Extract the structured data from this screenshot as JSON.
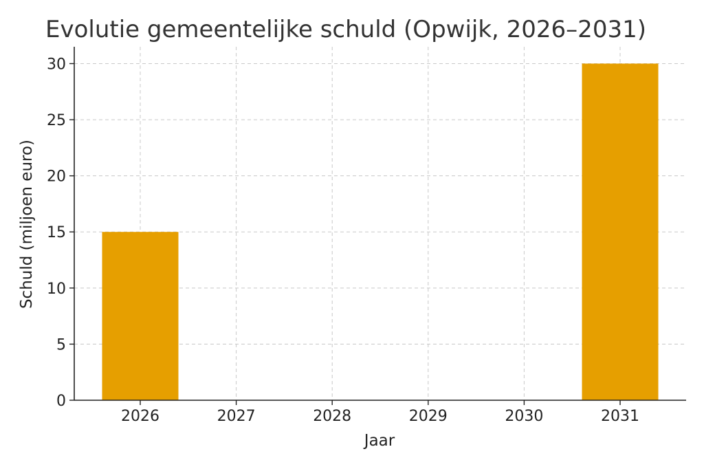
{
  "chart_data": {
    "type": "bar",
    "title": "Evolutie gemeentelijke schuld (Opwijk, 2026–2031)",
    "xlabel": "Jaar",
    "ylabel": "Schuld (miljoen euro)",
    "categories": [
      "2026",
      "2027",
      "2028",
      "2029",
      "2030",
      "2031"
    ],
    "values": [
      15,
      0,
      0,
      0,
      0,
      30
    ],
    "ylim": [
      0,
      31.5
    ],
    "yticks": [
      0,
      5,
      10,
      15,
      20,
      25,
      30
    ],
    "ytick_labels": [
      "0",
      "5",
      "10",
      "15",
      "20",
      "25",
      "30"
    ],
    "grid": true,
    "bar_color": "#E69F00"
  }
}
